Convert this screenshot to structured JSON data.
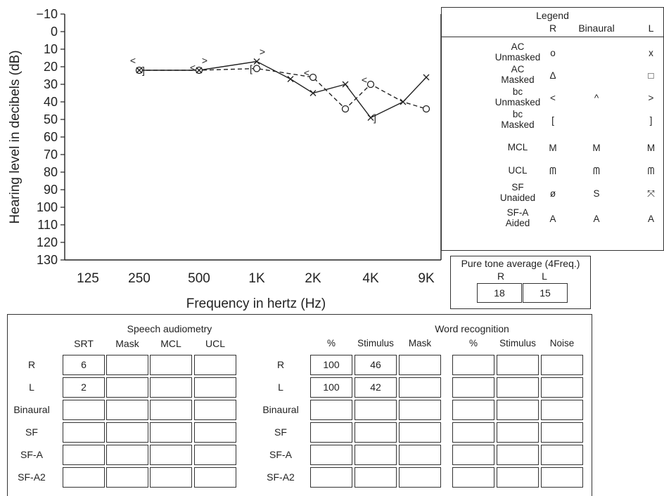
{
  "chart_data": {
    "type": "line",
    "ylabel": "Hearing level in decibels (dB)",
    "xlabel": "Frequency in hertz (Hz)",
    "ylim": [
      -10,
      130
    ],
    "y_ticks": [
      "−10",
      "0",
      "10",
      "20",
      "30",
      "40",
      "50",
      "60",
      "70",
      "80",
      "90",
      "100",
      "110",
      "120",
      "130"
    ],
    "x_ticks": [
      "125",
      "250",
      "500",
      "1K",
      "2K",
      "4K",
      "9K"
    ],
    "series": [
      {
        "style": "solid",
        "points": [
          {
            "x": "250",
            "y": 22
          },
          {
            "x": "500",
            "y": 22
          },
          {
            "x": "1K",
            "y": 17
          },
          {
            "x": "1.5K",
            "y": 27
          },
          {
            "x": "2K",
            "y": 35
          },
          {
            "x": "3K",
            "y": 30
          },
          {
            "x": "4K",
            "y": 49
          },
          {
            "x": "6K",
            "y": 40
          },
          {
            "x": "9K",
            "y": 26
          }
        ]
      },
      {
        "style": "dashed",
        "points": [
          {
            "x": "250",
            "y": 22
          },
          {
            "x": "500",
            "y": 22
          },
          {
            "x": "1K",
            "y": 21
          },
          {
            "x": "2K",
            "y": 26
          },
          {
            "x": "3K",
            "y": 44
          },
          {
            "x": "4K",
            "y": 30
          },
          {
            "x": "6K",
            "y": 40
          },
          {
            "x": "9K",
            "y": 44
          }
        ]
      }
    ],
    "marks": [
      {
        "x": "250",
        "y": 22,
        "symbol": "o"
      },
      {
        "x": "250",
        "y": 22,
        "symbol": "x"
      },
      {
        "x": "250",
        "y": 22,
        "symbol": "]"
      },
      {
        "x": "250",
        "y": 18,
        "symbol": "<"
      },
      {
        "x": "500",
        "y": 22,
        "symbol": "o"
      },
      {
        "x": "500",
        "y": 22,
        "symbol": "x"
      },
      {
        "x": "500",
        "y": 22,
        "symbol": "<"
      },
      {
        "x": "500",
        "y": 18,
        "symbol": ">"
      },
      {
        "x": "1K",
        "y": 21,
        "symbol": "o"
      },
      {
        "x": "1K",
        "y": 21,
        "symbol": "["
      },
      {
        "x": "1K",
        "y": 17,
        "symbol": "x"
      },
      {
        "x": "1K",
        "y": 13,
        "symbol": ">"
      },
      {
        "x": "1.5K",
        "y": 27,
        "symbol": "x"
      },
      {
        "x": "2K",
        "y": 26,
        "symbol": "o"
      },
      {
        "x": "2K",
        "y": 25,
        "symbol": "<"
      },
      {
        "x": "2K",
        "y": 35,
        "symbol": "x"
      },
      {
        "x": "3K",
        "y": 44,
        "symbol": "o"
      },
      {
        "x": "3K",
        "y": 30,
        "symbol": "x"
      },
      {
        "x": "4K",
        "y": 30,
        "symbol": "o"
      },
      {
        "x": "4K",
        "y": 29,
        "symbol": "<"
      },
      {
        "x": "4K",
        "y": 49,
        "symbol": "x"
      },
      {
        "x": "4K",
        "y": 49,
        "symbol": "]"
      },
      {
        "x": "6K",
        "y": 40,
        "symbol": "x"
      },
      {
        "x": "9K",
        "y": 44,
        "symbol": "o"
      },
      {
        "x": "9K",
        "y": 26,
        "symbol": "x"
      }
    ]
  },
  "legend": {
    "title": "Legend",
    "col_r": "R",
    "col_bin": "Binaural",
    "col_l": "L",
    "rows": [
      {
        "label": "AC\nUnmasked",
        "r": "o",
        "bin": "",
        "l": "x"
      },
      {
        "label": "AC\nMasked",
        "r": "Δ",
        "bin": "",
        "l": "□"
      },
      {
        "label": "bc\nUnmasked",
        "r": "<",
        "bin": "^",
        "l": ">"
      },
      {
        "label": "bc\nMasked",
        "r": "[",
        "bin": "",
        "l": "]"
      },
      {
        "label": "MCL",
        "r": "M",
        "bin": "M",
        "l": "M"
      },
      {
        "label": "UCL",
        "r": "ᗰ",
        "bin": "ᗰ",
        "l": "ᗰ"
      },
      {
        "label": "SF\nUnaided",
        "r": "ø",
        "bin": "S",
        "l": "⤧"
      },
      {
        "label": "SF-A\nAided",
        "r": "A",
        "bin": "A",
        "l": "A"
      }
    ]
  },
  "pta": {
    "title": "Pure tone average (4Freq.)",
    "r_label": "R",
    "l_label": "L",
    "r_value": "18",
    "l_value": "15"
  },
  "speech": {
    "title": "Speech audiometry",
    "cols": [
      "SRT",
      "Mask",
      "MCL",
      "UCL"
    ],
    "rows": [
      {
        "label": "R",
        "values": [
          "6",
          "",
          "",
          ""
        ]
      },
      {
        "label": "L",
        "values": [
          "2",
          "",
          "",
          ""
        ]
      },
      {
        "label": "Binaural",
        "values": [
          "",
          "",
          "",
          ""
        ]
      },
      {
        "label": "SF",
        "values": [
          "",
          "",
          "",
          ""
        ]
      },
      {
        "label": "SF-A",
        "values": [
          "",
          "",
          "",
          ""
        ]
      },
      {
        "label": "SF-A2",
        "values": [
          "",
          "",
          "",
          ""
        ]
      }
    ]
  },
  "word": {
    "title": "Word recognition",
    "cols": [
      "%",
      "Stimulus",
      "Mask",
      "%",
      "Stimulus",
      "Noise"
    ],
    "rows": [
      {
        "label": "R",
        "values": [
          "100",
          "46",
          "",
          "",
          "",
          ""
        ]
      },
      {
        "label": "L",
        "values": [
          "100",
          "42",
          "",
          "",
          "",
          ""
        ]
      },
      {
        "label": "Binaural",
        "values": [
          "",
          "",
          "",
          "",
          "",
          ""
        ]
      },
      {
        "label": "SF",
        "values": [
          "",
          "",
          "",
          "",
          "",
          ""
        ]
      },
      {
        "label": "SF-A",
        "values": [
          "",
          "",
          "",
          "",
          "",
          ""
        ]
      },
      {
        "label": "SF-A2",
        "values": [
          "",
          "",
          "",
          "",
          "",
          ""
        ]
      }
    ]
  }
}
